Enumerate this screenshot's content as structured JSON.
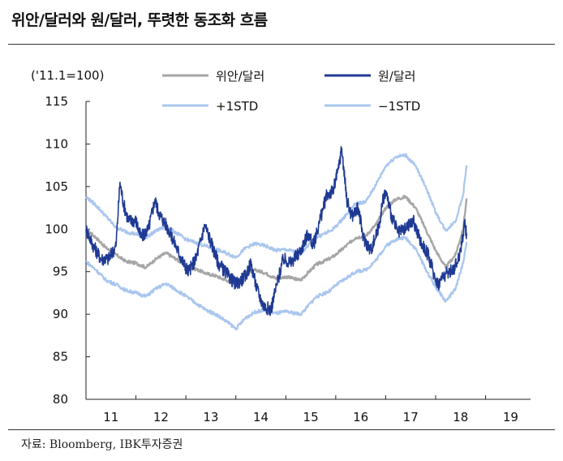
{
  "title": "위안/달러와 원/달러, 뚜렷한 동조화 흐름",
  "source": "자료: Bloomberg, IBK투자증권",
  "colors": {
    "cny": "#a6a6a6",
    "krw": "#1f3a93",
    "std": "#a9c6ee"
  },
  "chart_data": {
    "type": "line",
    "unit_label": "('11.1=100)",
    "x_ticks": [
      "11",
      "12",
      "13",
      "14",
      "15",
      "16",
      "17",
      "18",
      "19"
    ],
    "y_ticks": [
      "80",
      "85",
      "90",
      "95",
      "100",
      "105",
      "110",
      "115"
    ],
    "xlim": [
      2011,
      2019.9
    ],
    "ylim": [
      80,
      115
    ],
    "legend": [
      "위안/달러",
      "원/달러",
      "+1STD",
      "−1STD"
    ],
    "series": [
      {
        "name": "위안/달러",
        "points": [
          [
            2011.0,
            100
          ],
          [
            2011.2,
            99
          ],
          [
            2011.4,
            97.8
          ],
          [
            2011.6,
            97
          ],
          [
            2011.8,
            96.2
          ],
          [
            2012.0,
            96
          ],
          [
            2012.2,
            95.5
          ],
          [
            2012.4,
            96.5
          ],
          [
            2012.6,
            97.2
          ],
          [
            2012.8,
            96.5
          ],
          [
            2013.0,
            95.7
          ],
          [
            2013.2,
            95.3
          ],
          [
            2013.4,
            94.8
          ],
          [
            2013.6,
            94.5
          ],
          [
            2013.8,
            94
          ],
          [
            2014.0,
            93.6
          ],
          [
            2014.2,
            94.8
          ],
          [
            2014.4,
            95.2
          ],
          [
            2014.6,
            94.8
          ],
          [
            2014.8,
            94.2
          ],
          [
            2015.0,
            94.4
          ],
          [
            2015.3,
            94
          ],
          [
            2015.6,
            95.8
          ],
          [
            2015.9,
            96.6
          ],
          [
            2016.0,
            97
          ],
          [
            2016.2,
            98
          ],
          [
            2016.4,
            99
          ],
          [
            2016.6,
            99.2
          ],
          [
            2016.8,
            100.5
          ],
          [
            2017.0,
            102.5
          ],
          [
            2017.2,
            103.5
          ],
          [
            2017.4,
            103.8
          ],
          [
            2017.6,
            102.5
          ],
          [
            2017.8,
            100
          ],
          [
            2018.0,
            97.5
          ],
          [
            2018.2,
            95.5
          ],
          [
            2018.4,
            97
          ],
          [
            2018.55,
            100
          ],
          [
            2018.62,
            103.6
          ]
        ]
      },
      {
        "name": "원/달러",
        "points": [
          [
            2011.0,
            100
          ],
          [
            2011.15,
            98
          ],
          [
            2011.3,
            96.5
          ],
          [
            2011.45,
            96.5
          ],
          [
            2011.6,
            98
          ],
          [
            2011.68,
            105.5
          ],
          [
            2011.75,
            103
          ],
          [
            2011.85,
            101
          ],
          [
            2012.0,
            101
          ],
          [
            2012.1,
            99
          ],
          [
            2012.25,
            100
          ],
          [
            2012.38,
            103.5
          ],
          [
            2012.45,
            102
          ],
          [
            2012.55,
            101
          ],
          [
            2012.65,
            100
          ],
          [
            2012.8,
            98
          ],
          [
            2012.95,
            96
          ],
          [
            2013.05,
            95
          ],
          [
            2013.2,
            96.5
          ],
          [
            2013.38,
            100.5
          ],
          [
            2013.5,
            98.5
          ],
          [
            2013.65,
            96
          ],
          [
            2013.85,
            94.5
          ],
          [
            2014.0,
            93.5
          ],
          [
            2014.2,
            94.5
          ],
          [
            2014.3,
            96
          ],
          [
            2014.42,
            93
          ],
          [
            2014.55,
            91
          ],
          [
            2014.7,
            90.5
          ],
          [
            2014.82,
            93.5
          ],
          [
            2014.95,
            96.5
          ],
          [
            2015.1,
            96
          ],
          [
            2015.3,
            97.5
          ],
          [
            2015.45,
            99.5
          ],
          [
            2015.55,
            98
          ],
          [
            2015.68,
            101
          ],
          [
            2015.82,
            104
          ],
          [
            2015.95,
            104.5
          ],
          [
            2016.05,
            107
          ],
          [
            2016.12,
            109.5
          ],
          [
            2016.22,
            103.5
          ],
          [
            2016.32,
            101.5
          ],
          [
            2016.45,
            102.5
          ],
          [
            2016.55,
            99
          ],
          [
            2016.7,
            97.5
          ],
          [
            2016.85,
            100
          ],
          [
            2016.95,
            103.5
          ],
          [
            2017.0,
            104.5
          ],
          [
            2017.12,
            101.5
          ],
          [
            2017.25,
            99.5
          ],
          [
            2017.4,
            100
          ],
          [
            2017.55,
            101
          ],
          [
            2017.7,
            98.5
          ],
          [
            2017.85,
            97
          ],
          [
            2017.95,
            95
          ],
          [
            2018.05,
            93.5
          ],
          [
            2018.15,
            94.5
          ],
          [
            2018.28,
            95
          ],
          [
            2018.38,
            95.5
          ],
          [
            2018.48,
            97
          ],
          [
            2018.58,
            100.5
          ],
          [
            2018.62,
            99.5
          ]
        ]
      },
      {
        "name": "+1STD",
        "points": [
          [
            2011.0,
            103.8
          ],
          [
            2011.2,
            102.8
          ],
          [
            2011.4,
            101.5
          ],
          [
            2011.6,
            100.2
          ],
          [
            2011.8,
            99.7
          ],
          [
            2012.0,
            99.4
          ],
          [
            2012.2,
            99
          ],
          [
            2012.4,
            99.8
          ],
          [
            2012.6,
            100.3
          ],
          [
            2012.8,
            99.6
          ],
          [
            2013.0,
            98.8
          ],
          [
            2013.2,
            98.4
          ],
          [
            2013.4,
            98
          ],
          [
            2013.6,
            97.6
          ],
          [
            2013.8,
            97.2
          ],
          [
            2014.0,
            96.7
          ],
          [
            2014.2,
            97.8
          ],
          [
            2014.4,
            98.3
          ],
          [
            2014.6,
            98
          ],
          [
            2014.8,
            97.5
          ],
          [
            2015.0,
            97.6
          ],
          [
            2015.3,
            97.2
          ],
          [
            2015.6,
            99
          ],
          [
            2015.9,
            99.8
          ],
          [
            2016.0,
            100.3
          ],
          [
            2016.2,
            101.6
          ],
          [
            2016.4,
            103
          ],
          [
            2016.6,
            103.2
          ],
          [
            2016.8,
            105.2
          ],
          [
            2017.0,
            107.4
          ],
          [
            2017.2,
            108.5
          ],
          [
            2017.4,
            108.7
          ],
          [
            2017.6,
            107.4
          ],
          [
            2017.8,
            105
          ],
          [
            2018.0,
            102
          ],
          [
            2018.2,
            99.8
          ],
          [
            2018.4,
            101
          ],
          [
            2018.55,
            104
          ],
          [
            2018.62,
            107.5
          ]
        ]
      },
      {
        "name": "−1STD",
        "points": [
          [
            2011.0,
            96.2
          ],
          [
            2011.2,
            95.2
          ],
          [
            2011.4,
            94
          ],
          [
            2011.6,
            93.5
          ],
          [
            2011.8,
            92.8
          ],
          [
            2012.0,
            92.5
          ],
          [
            2012.2,
            92.1
          ],
          [
            2012.4,
            93
          ],
          [
            2012.6,
            93.6
          ],
          [
            2012.8,
            92.9
          ],
          [
            2013.0,
            92.1
          ],
          [
            2013.2,
            91.3
          ],
          [
            2013.4,
            90.5
          ],
          [
            2013.6,
            90
          ],
          [
            2013.8,
            89.2
          ],
          [
            2014.0,
            88.3
          ],
          [
            2014.2,
            89.6
          ],
          [
            2014.4,
            90.3
          ],
          [
            2014.6,
            90.5
          ],
          [
            2014.8,
            90.1
          ],
          [
            2015.0,
            90.3
          ],
          [
            2015.3,
            90
          ],
          [
            2015.6,
            92
          ],
          [
            2015.9,
            92.8
          ],
          [
            2016.0,
            93.4
          ],
          [
            2016.2,
            94.2
          ],
          [
            2016.4,
            95
          ],
          [
            2016.6,
            95.2
          ],
          [
            2016.8,
            96.3
          ],
          [
            2017.0,
            98
          ],
          [
            2017.2,
            98.8
          ],
          [
            2017.4,
            99
          ],
          [
            2017.6,
            97.7
          ],
          [
            2017.8,
            95.3
          ],
          [
            2018.0,
            93.2
          ],
          [
            2018.2,
            91.5
          ],
          [
            2018.4,
            93
          ],
          [
            2018.55,
            96
          ],
          [
            2018.62,
            98.5
          ]
        ]
      }
    ]
  }
}
